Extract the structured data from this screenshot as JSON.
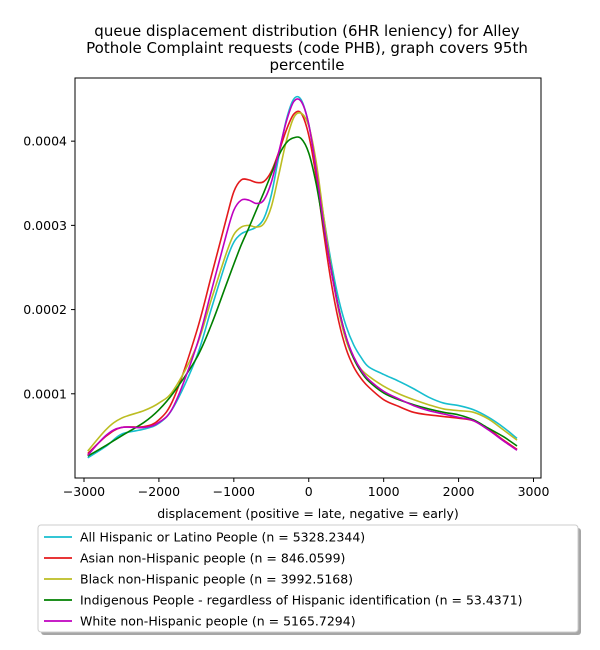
{
  "chart_data": {
    "type": "line",
    "title_lines": [
      "queue displacement distribution (6HR leniency) for Alley",
      "Pothole Complaint  requests (code PHB), graph covers 95th",
      "percentile"
    ],
    "xlabel": "displacement (positive = late, negative = early)",
    "ylabel": "",
    "xlim": [
      -3120,
      3100
    ],
    "ylim": [
      0.0,
      0.000475
    ],
    "xticks": [
      -3000,
      -2000,
      -1000,
      0,
      1000,
      2000,
      3000
    ],
    "xtick_labels": [
      "−3000",
      "−2000",
      "−1000",
      "0",
      "1000",
      "2000",
      "3000"
    ],
    "yticks": [
      0.0001,
      0.0002,
      0.0003,
      0.0004
    ],
    "ytick_labels": [
      "0.0001",
      "0.0002",
      "0.0003",
      "0.0004"
    ],
    "grid": false,
    "legend_position": "below",
    "x": [
      -2950,
      -2700,
      -2500,
      -2200,
      -2000,
      -1800,
      -1500,
      -1300,
      -1100,
      -1000,
      -900,
      -800,
      -700,
      -600,
      -500,
      -400,
      -300,
      -200,
      -100,
      0,
      100,
      200,
      300,
      400,
      500,
      600,
      700,
      800,
      1000,
      1200,
      1400,
      1600,
      1800,
      2000,
      2200,
      2400,
      2600,
      2780
    ],
    "series": [
      {
        "name": "All Hispanic or Latino People (n = 5328.2344)",
        "color": "#17becf",
        "values": [
          2.4e-05,
          3.8e-05,
          5.2e-05,
          5.8e-05,
          6.5e-05,
          8.5e-05,
          0.000143,
          0.000201,
          0.000258,
          0.00028,
          0.00029,
          0.000294,
          0.000298,
          0.000308,
          0.000336,
          0.000382,
          0.000425,
          0.00045,
          0.000449,
          0.00042,
          0.00037,
          0.00031,
          0.000256,
          0.000212,
          0.00018,
          0.000158,
          0.000143,
          0.000132,
          0.000123,
          0.000115,
          0.000106,
          9.6e-05,
          8.9e-05,
          8.6e-05,
          8.1e-05,
          7.2e-05,
          6e-05,
          4.7e-05
        ]
      },
      {
        "name": "Asian non-Hispanic people (n = 846.0599)",
        "color": "#e41a1c",
        "values": [
          2.9e-05,
          5e-05,
          6e-05,
          6.1e-05,
          6.9e-05,
          9.5e-05,
          0.000173,
          0.00024,
          0.000308,
          0.00034,
          0.000354,
          0.000354,
          0.000351,
          0.000352,
          0.000364,
          0.000387,
          0.000413,
          0.000432,
          0.000433,
          0.000407,
          0.000357,
          0.000291,
          0.000232,
          0.000186,
          0.000153,
          0.000132,
          0.000118,
          0.000108,
          9.3e-05,
          8.5e-05,
          7.8e-05,
          7.5e-05,
          7.3e-05,
          7.1e-05,
          6.8e-05,
          5.8e-05,
          4.5e-05,
          3.4e-05
        ]
      },
      {
        "name": "Black non-Hispanic people (n = 3992.5168)",
        "color": "#bcbd22",
        "values": [
          3.2e-05,
          5.8e-05,
          7.1e-05,
          8e-05,
          8.9e-05,
          0.000105,
          0.000156,
          0.000212,
          0.000267,
          0.000289,
          0.000298,
          0.0003,
          0.000298,
          0.000302,
          0.000322,
          0.00036,
          0.0004,
          0.000428,
          0.000433,
          0.000418,
          0.000375,
          0.00031,
          0.000249,
          0.000198,
          0.000163,
          0.000142,
          0.000129,
          0.000121,
          0.000109,
          0.0001,
          9.3e-05,
          8.7e-05,
          8.2e-05,
          8e-05,
          7.8e-05,
          7e-05,
          5.7e-05,
          4.5e-05
        ]
      },
      {
        "name": "Indigenous People - regardless of Hispanic identification (n = 53.4371)",
        "color": "#008000",
        "values": [
          2.6e-05,
          3.9e-05,
          5e-05,
          6.6e-05,
          8.1e-05,
          0.000102,
          0.000142,
          0.000182,
          0.00023,
          0.000254,
          0.000277,
          0.000297,
          0.000318,
          0.000339,
          0.000361,
          0.000383,
          0.000398,
          0.000404,
          0.000403,
          0.000386,
          0.000349,
          0.000298,
          0.000247,
          0.000202,
          0.000167,
          0.000142,
          0.000126,
          0.000115,
          0.000101,
          9.3e-05,
          8.7e-05,
          8.2e-05,
          7.8e-05,
          7.5e-05,
          6.9e-05,
          5.9e-05,
          4.9e-05,
          3.8e-05
        ]
      },
      {
        "name": "White non-Hispanic people (n = 5165.7294)",
        "color": "#bf00bf",
        "values": [
          2.7e-05,
          5.1e-05,
          6e-05,
          6e-05,
          6.6e-05,
          8.6e-05,
          0.000156,
          0.000222,
          0.000289,
          0.000318,
          0.00033,
          0.00033,
          0.000326,
          0.00033,
          0.000351,
          0.000387,
          0.000423,
          0.000447,
          0.000447,
          0.00042,
          0.000365,
          0.000301,
          0.000246,
          0.000201,
          0.000167,
          0.000144,
          0.000128,
          0.000117,
          0.000103,
          9.4e-05,
          8.6e-05,
          8e-05,
          7.6e-05,
          7.2e-05,
          6.8e-05,
          5.7e-05,
          4.4e-05,
          3.3e-05
        ]
      }
    ]
  }
}
